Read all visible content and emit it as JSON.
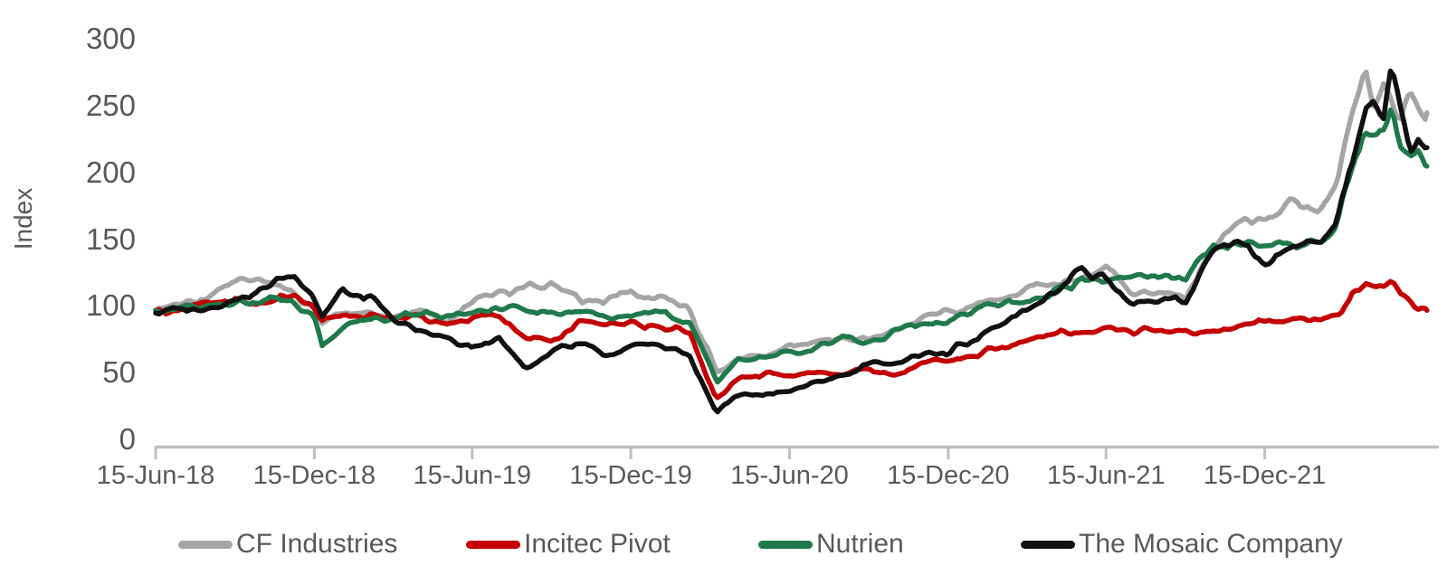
{
  "chart": {
    "background": "#FFFFFF",
    "axis_color": "#BFBFBF",
    "text_color": "#595959"
  },
  "chart_data": {
    "type": "line",
    "title": "",
    "xlabel": "",
    "ylabel": "Index",
    "ylim": [
      0,
      300
    ],
    "grid": false,
    "legend_position": "bottom",
    "yticks": [
      0,
      50,
      100,
      150,
      200,
      250,
      300
    ],
    "xtick_labels": [
      "15-Jun-18",
      "15-Dec-18",
      "15-Jun-19",
      "15-Dec-19",
      "15-Jun-20",
      "15-Dec-20",
      "15-Jun-21",
      "15-Dec-21"
    ],
    "xtick_dates": [
      "2018-06-15",
      "2018-12-15",
      "2019-06-15",
      "2019-12-15",
      "2020-06-15",
      "2020-12-15",
      "2021-06-15",
      "2021-12-15"
    ],
    "x_range": [
      "2018-06-15",
      "2022-06-20"
    ],
    "x": [
      "2018-06-15",
      "2018-07-15",
      "2018-08-15",
      "2018-09-15",
      "2018-10-01",
      "2018-11-01",
      "2018-11-20",
      "2018-12-15",
      "2018-12-24",
      "2019-01-15",
      "2019-02-15",
      "2019-03-15",
      "2019-04-15",
      "2019-05-15",
      "2019-06-15",
      "2019-07-15",
      "2019-08-15",
      "2019-09-15",
      "2019-10-15",
      "2019-11-15",
      "2019-12-15",
      "2020-01-15",
      "2020-02-20",
      "2020-03-23",
      "2020-04-15",
      "2020-05-15",
      "2020-06-15",
      "2020-07-15",
      "2020-08-15",
      "2020-09-15",
      "2020-10-15",
      "2020-11-15",
      "2020-12-15",
      "2021-01-15",
      "2021-02-15",
      "2021-03-15",
      "2021-04-15",
      "2021-05-15",
      "2021-06-15",
      "2021-07-15",
      "2021-08-15",
      "2021-09-15",
      "2021-10-15",
      "2021-11-15",
      "2021-12-15",
      "2022-01-15",
      "2022-02-15",
      "2022-03-08",
      "2022-03-25",
      "2022-04-10",
      "2022-04-20",
      "2022-05-01",
      "2022-05-10",
      "2022-05-20",
      "2022-06-01",
      "2022-06-10",
      "2022-06-20"
    ],
    "series": [
      {
        "name": "CF Industries",
        "color": "#A5A5A5",
        "values": [
          100,
          103,
          110,
          122,
          127,
          117,
          112,
          100,
          90,
          99,
          98,
          96,
          99,
          93,
          105,
          113,
          116,
          118,
          110,
          107,
          112,
          110,
          100,
          55,
          62,
          66,
          73,
          76,
          80,
          77,
          83,
          95,
          98,
          104,
          110,
          116,
          118,
          124,
          132,
          112,
          116,
          112,
          150,
          168,
          165,
          180,
          170,
          190,
          245,
          278,
          250,
          270,
          258,
          243,
          266,
          255,
          248
        ]
      },
      {
        "name": "Incitec Pivot",
        "color": "#C40000",
        "values": [
          100,
          101,
          104,
          106,
          104,
          108,
          110,
          100,
          92,
          95,
          96,
          97,
          95,
          90,
          93,
          95,
          80,
          76,
          90,
          88,
          90,
          88,
          85,
          33,
          50,
          52,
          50,
          52,
          53,
          56,
          52,
          60,
          63,
          67,
          72,
          76,
          82,
          85,
          87,
          84,
          86,
          84,
          82,
          88,
          90,
          92,
          94,
          96,
          110,
          118,
          115,
          120,
          123,
          113,
          107,
          103,
          100
        ]
      },
      {
        "name": "Nutrien",
        "color": "#1F7A4A",
        "values": [
          100,
          101,
          104,
          108,
          107,
          110,
          107,
          95,
          74,
          88,
          92,
          95,
          98,
          93,
          100,
          102,
          98,
          100,
          98,
          96,
          96,
          98,
          92,
          47,
          62,
          64,
          68,
          72,
          78,
          76,
          84,
          92,
          90,
          100,
          105,
          108,
          115,
          122,
          120,
          125,
          123,
          124,
          150,
          152,
          148,
          150,
          152,
          160,
          205,
          230,
          235,
          238,
          252,
          222,
          215,
          220,
          208
        ]
      },
      {
        "name": "The Mosaic Company",
        "color": "#111111",
        "values": [
          98,
          100,
          102,
          110,
          112,
          125,
          128,
          107,
          97,
          114,
          112,
          92,
          86,
          81,
          71,
          80,
          58,
          70,
          76,
          66,
          72,
          74,
          68,
          22,
          35,
          37,
          41,
          45,
          50,
          62,
          60,
          65,
          68,
          80,
          92,
          103,
          112,
          132,
          123,
          106,
          108,
          108,
          142,
          154,
          132,
          145,
          150,
          165,
          210,
          250,
          258,
          242,
          284,
          250,
          222,
          234,
          222
        ]
      }
    ]
  }
}
